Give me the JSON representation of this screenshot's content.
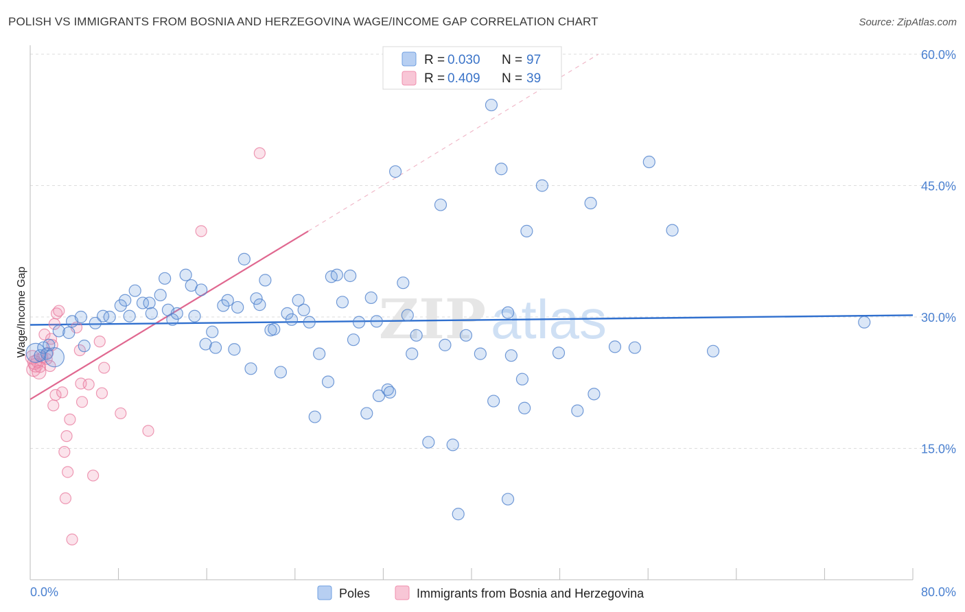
{
  "header": {
    "title": "POLISH VS IMMIGRANTS FROM BOSNIA AND HERZEGOVINA WAGE/INCOME GAP CORRELATION CHART",
    "source": "Source: ZipAtlas.com"
  },
  "watermark": {
    "zip": "ZIP",
    "atlas": "atlas"
  },
  "legend_top": {
    "rows": [
      {
        "r_label": "R = ",
        "r_value": "0.030",
        "n_label": "N = ",
        "n_value": "97"
      },
      {
        "r_label": "R = ",
        "r_value": "0.409",
        "n_label": "N = ",
        "n_value": "39"
      }
    ]
  },
  "legend_bottom": {
    "series1": "Poles",
    "series2": "Immigrants from Bosnia and Herzegovina"
  },
  "colors": {
    "blue": "#6f9fe0",
    "blue_line": "#2f6fce",
    "pink": "#f08fae",
    "pink_line": "#e06890",
    "grid": "#dcdcdc",
    "tick_text": "#4a80d0"
  },
  "chart_data": {
    "type": "scatter",
    "title": "POLISH VS IMMIGRANTS FROM BOSNIA AND HERZEGOVINA WAGE/INCOME GAP CORRELATION CHART",
    "xlabel": "",
    "ylabel": "Wage/Income Gap",
    "xlim": [
      0,
      80
    ],
    "ylim": [
      0,
      62
    ],
    "x_tick_labels": [
      "0.0%",
      "80.0%"
    ],
    "y_ticks": [
      15,
      30,
      45,
      60
    ],
    "y_tick_labels": [
      "15.0%",
      "30.0%",
      "45.0%",
      "60.0%"
    ],
    "grid": true,
    "legend_position": "top-center",
    "series": [
      {
        "name": "Poles",
        "color": "#6f9fe0",
        "trend": {
          "x": [
            0,
            80
          ],
          "y": [
            29.1,
            30.2
          ]
        },
        "points": [
          [
            0.5,
            25.9
          ],
          [
            0.9,
            25.6
          ],
          [
            1.2,
            26.5
          ],
          [
            1.5,
            25.8
          ],
          [
            2.2,
            25.4
          ],
          [
            1.7,
            26.8
          ],
          [
            2.6,
            28.4
          ],
          [
            3.8,
            29.5
          ],
          [
            3.5,
            28.2
          ],
          [
            4.9,
            26.7
          ],
          [
            4.6,
            30.0
          ],
          [
            5.9,
            29.3
          ],
          [
            6.6,
            30.1
          ],
          [
            7.2,
            30.0
          ],
          [
            8.2,
            31.3
          ],
          [
            8.6,
            31.9
          ],
          [
            9.5,
            33.0
          ],
          [
            9.0,
            30.1
          ],
          [
            10.2,
            31.6
          ],
          [
            10.8,
            31.6
          ],
          [
            11.0,
            30.4
          ],
          [
            11.8,
            32.5
          ],
          [
            12.2,
            34.4
          ],
          [
            12.5,
            30.8
          ],
          [
            12.9,
            29.7
          ],
          [
            13.3,
            30.4
          ],
          [
            14.1,
            34.8
          ],
          [
            14.6,
            33.6
          ],
          [
            14.9,
            30.1
          ],
          [
            15.5,
            33.1
          ],
          [
            15.9,
            26.9
          ],
          [
            16.5,
            28.3
          ],
          [
            16.8,
            26.5
          ],
          [
            17.5,
            31.3
          ],
          [
            17.9,
            31.9
          ],
          [
            18.5,
            26.3
          ],
          [
            18.8,
            31.1
          ],
          [
            19.4,
            36.6
          ],
          [
            20.0,
            24.1
          ],
          [
            20.5,
            32.1
          ],
          [
            20.8,
            31.4
          ],
          [
            21.3,
            34.2
          ],
          [
            21.8,
            28.5
          ],
          [
            22.1,
            28.6
          ],
          [
            22.7,
            23.7
          ],
          [
            23.3,
            30.4
          ],
          [
            23.7,
            29.7
          ],
          [
            24.3,
            31.9
          ],
          [
            24.8,
            30.8
          ],
          [
            25.3,
            29.4
          ],
          [
            25.8,
            18.6
          ],
          [
            26.2,
            25.8
          ],
          [
            27.0,
            22.6
          ],
          [
            27.3,
            34.6
          ],
          [
            27.8,
            34.8
          ],
          [
            28.3,
            31.7
          ],
          [
            29.0,
            34.7
          ],
          [
            29.3,
            27.4
          ],
          [
            29.8,
            29.4
          ],
          [
            30.5,
            19.0
          ],
          [
            30.9,
            32.2
          ],
          [
            31.4,
            29.5
          ],
          [
            31.6,
            21.0
          ],
          [
            32.4,
            21.7
          ],
          [
            32.6,
            21.4
          ],
          [
            33.1,
            46.6
          ],
          [
            33.8,
            33.9
          ],
          [
            34.2,
            30.2
          ],
          [
            34.6,
            25.8
          ],
          [
            35.0,
            27.9
          ],
          [
            36.1,
            15.7
          ],
          [
            37.2,
            42.8
          ],
          [
            37.6,
            26.8
          ],
          [
            38.8,
            7.5
          ],
          [
            39.5,
            27.9
          ],
          [
            40.8,
            25.8
          ],
          [
            41.8,
            54.2
          ],
          [
            42.0,
            20.4
          ],
          [
            42.7,
            46.9
          ],
          [
            43.3,
            30.5
          ],
          [
            43.6,
            25.6
          ],
          [
            44.6,
            22.9
          ],
          [
            44.8,
            19.6
          ],
          [
            45.0,
            39.8
          ],
          [
            46.4,
            45.0
          ],
          [
            47.9,
            25.9
          ],
          [
            49.6,
            19.3
          ],
          [
            50.8,
            43.0
          ],
          [
            51.1,
            21.2
          ],
          [
            53.0,
            26.6
          ],
          [
            54.8,
            26.5
          ],
          [
            56.1,
            47.7
          ],
          [
            58.2,
            39.9
          ],
          [
            61.9,
            26.1
          ],
          [
            75.6,
            29.4
          ],
          [
            43.3,
            9.2
          ],
          [
            38.3,
            15.4
          ]
        ]
      },
      {
        "name": "Immigrants from Bosnia and Herzegovina",
        "color": "#f08fae",
        "trend": {
          "x": [
            0,
            25.2
          ],
          "y": [
            20.6,
            39.8
          ]
        },
        "trend_ext": {
          "x": [
            25.2,
            51.5
          ],
          "y": [
            39.8,
            60.0
          ]
        },
        "points": [
          [
            0.3,
            24.0
          ],
          [
            0.5,
            24.5
          ],
          [
            0.7,
            25.0
          ],
          [
            0.9,
            24.3
          ],
          [
            1.1,
            25.4
          ],
          [
            1.3,
            28.0
          ],
          [
            1.5,
            25.2
          ],
          [
            1.6,
            25.9
          ],
          [
            1.8,
            24.4
          ],
          [
            1.9,
            27.5
          ],
          [
            2.0,
            26.8
          ],
          [
            2.1,
            19.9
          ],
          [
            2.2,
            29.2
          ],
          [
            2.3,
            21.1
          ],
          [
            2.4,
            30.4
          ],
          [
            2.6,
            30.7
          ],
          [
            2.9,
            21.4
          ],
          [
            3.1,
            14.6
          ],
          [
            3.2,
            9.3
          ],
          [
            3.3,
            16.4
          ],
          [
            3.4,
            12.3
          ],
          [
            3.6,
            18.3
          ],
          [
            3.8,
            4.6
          ],
          [
            4.2,
            28.8
          ],
          [
            4.5,
            26.2
          ],
          [
            4.6,
            22.4
          ],
          [
            4.7,
            20.3
          ],
          [
            5.3,
            22.3
          ],
          [
            5.7,
            11.9
          ],
          [
            6.3,
            27.2
          ],
          [
            6.5,
            21.3
          ],
          [
            6.7,
            24.2
          ],
          [
            8.2,
            19.0
          ],
          [
            10.7,
            17.0
          ],
          [
            15.5,
            39.8
          ],
          [
            20.8,
            48.7
          ],
          [
            0.2,
            25.4
          ],
          [
            0.4,
            24.8
          ],
          [
            0.8,
            23.7
          ]
        ]
      }
    ]
  }
}
